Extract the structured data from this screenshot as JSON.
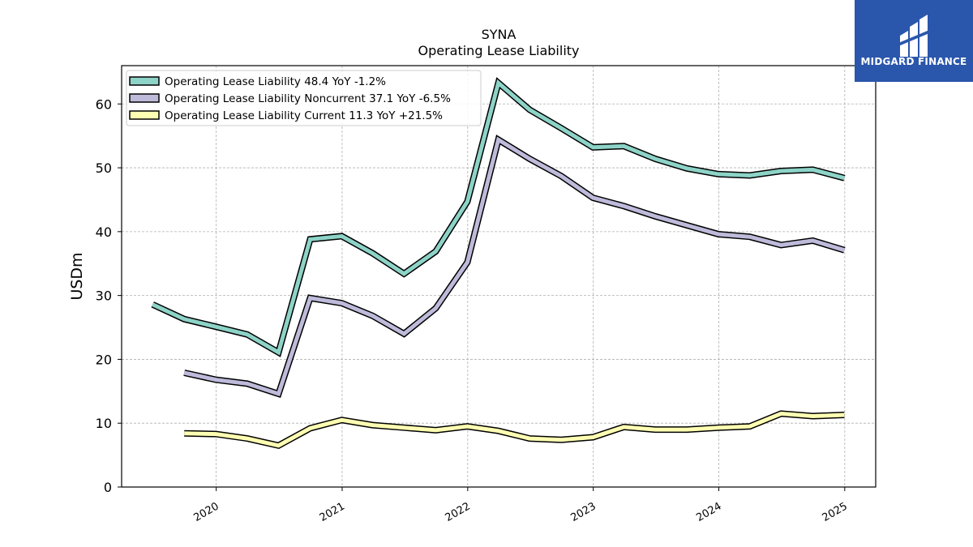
{
  "logo": {
    "text": "MIDGARD FINANCE",
    "background": "#2a56ab",
    "color": "#ffffff"
  },
  "chart_data": {
    "type": "line",
    "title": "SYNA",
    "subtitle": "Operating Lease Liability",
    "xlabel": "",
    "ylabel": "USDm",
    "ylim": [
      0,
      66
    ],
    "xlim": [
      "2019-04-01",
      "2025-04-01"
    ],
    "yticks": [
      0,
      10,
      20,
      30,
      40,
      50,
      60
    ],
    "xticks": [
      "2020",
      "2021",
      "2022",
      "2023",
      "2024",
      "2025"
    ],
    "grid": true,
    "legend_position": "top-left",
    "series": [
      {
        "name": "Operating Lease Liability",
        "legend_label": "Operating Lease Liability  48.4 YoY -1.2%",
        "color": "#8dd3c7",
        "points": [
          [
            "2019-06-30",
            28.6
          ],
          [
            "2019-09-30",
            26.3
          ],
          [
            "2019-12-31",
            25.1
          ],
          [
            "2020-03-31",
            23.9
          ],
          [
            "2020-06-30",
            21.1
          ],
          [
            "2020-09-30",
            38.8
          ],
          [
            "2020-12-31",
            39.3
          ],
          [
            "2021-03-31",
            36.6
          ],
          [
            "2021-06-30",
            33.4
          ],
          [
            "2021-09-30",
            36.9
          ],
          [
            "2021-12-31",
            44.7
          ],
          [
            "2022-03-31",
            63.3
          ],
          [
            "2022-06-30",
            59.1
          ],
          [
            "2022-09-30",
            56.2
          ],
          [
            "2022-12-31",
            53.2
          ],
          [
            "2023-03-31",
            53.4
          ],
          [
            "2023-06-30",
            51.4
          ],
          [
            "2023-09-30",
            49.9
          ],
          [
            "2023-12-31",
            49.0
          ],
          [
            "2024-03-31",
            48.8
          ],
          [
            "2024-06-30",
            49.5
          ],
          [
            "2024-09-30",
            49.7
          ],
          [
            "2024-12-31",
            48.4
          ]
        ]
      },
      {
        "name": "Operating Lease Liability Noncurrent",
        "legend_label": "Operating Lease Liability Noncurrent  37.1 YoY -6.5%",
        "color": "#bebada",
        "points": [
          [
            "2019-09-30",
            17.9
          ],
          [
            "2019-12-31",
            16.8
          ],
          [
            "2020-03-31",
            16.2
          ],
          [
            "2020-06-30",
            14.6
          ],
          [
            "2020-09-30",
            29.6
          ],
          [
            "2020-12-31",
            28.8
          ],
          [
            "2021-03-31",
            26.8
          ],
          [
            "2021-06-30",
            24.0
          ],
          [
            "2021-09-30",
            28.0
          ],
          [
            "2021-12-31",
            35.2
          ],
          [
            "2022-03-31",
            54.4
          ],
          [
            "2022-06-30",
            51.4
          ],
          [
            "2022-09-30",
            48.7
          ],
          [
            "2022-12-31",
            45.3
          ],
          [
            "2023-03-31",
            44.0
          ],
          [
            "2023-06-30",
            42.4
          ],
          [
            "2023-09-30",
            41.0
          ],
          [
            "2023-12-31",
            39.6
          ],
          [
            "2024-03-31",
            39.2
          ],
          [
            "2024-06-30",
            37.9
          ],
          [
            "2024-09-30",
            38.6
          ],
          [
            "2024-12-31",
            37.1
          ]
        ]
      },
      {
        "name": "Operating Lease Liability Current",
        "legend_label": "Operating Lease Liability Current  11.3 YoY +21.5%",
        "color": "#ffffb3",
        "points": [
          [
            "2019-09-30",
            8.4
          ],
          [
            "2019-12-31",
            8.3
          ],
          [
            "2020-03-31",
            7.6
          ],
          [
            "2020-06-30",
            6.5
          ],
          [
            "2020-09-30",
            9.2
          ],
          [
            "2020-12-31",
            10.5
          ],
          [
            "2021-03-31",
            9.7
          ],
          [
            "2021-06-30",
            9.3
          ],
          [
            "2021-09-30",
            8.9
          ],
          [
            "2021-12-31",
            9.5
          ],
          [
            "2022-03-31",
            8.8
          ],
          [
            "2022-06-30",
            7.6
          ],
          [
            "2022-09-30",
            7.4
          ],
          [
            "2022-12-31",
            7.8
          ],
          [
            "2023-03-31",
            9.4
          ],
          [
            "2023-06-30",
            9.0
          ],
          [
            "2023-09-30",
            9.0
          ],
          [
            "2023-12-31",
            9.3
          ],
          [
            "2024-03-31",
            9.5
          ],
          [
            "2024-06-30",
            11.5
          ],
          [
            "2024-09-30",
            11.1
          ],
          [
            "2024-12-31",
            11.3
          ]
        ]
      }
    ]
  }
}
